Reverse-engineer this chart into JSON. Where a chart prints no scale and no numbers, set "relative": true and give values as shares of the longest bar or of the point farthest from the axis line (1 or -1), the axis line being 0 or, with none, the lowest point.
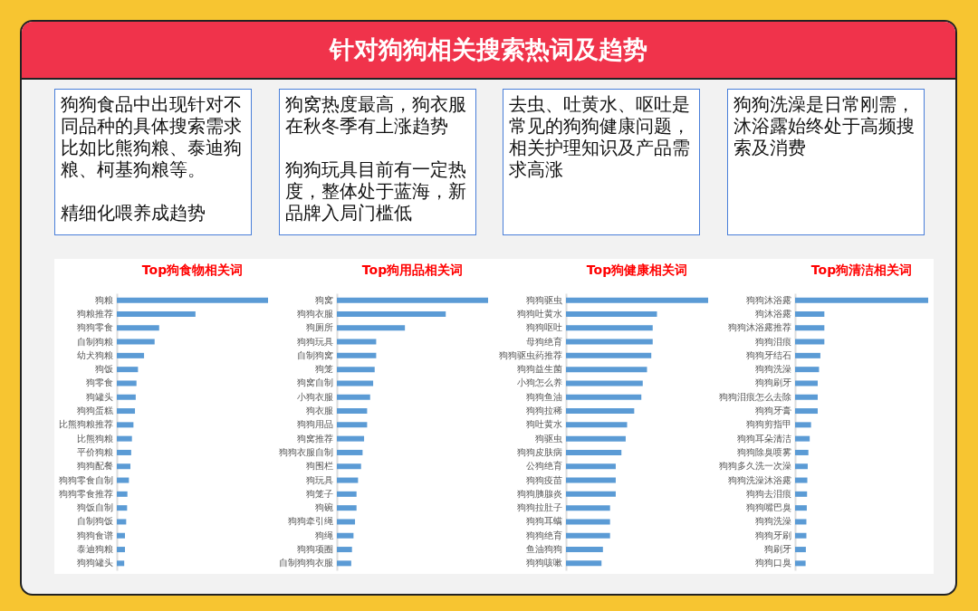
{
  "chart_data": [
    {
      "type": "other",
      "title": "针对狗狗相关搜索热词及趋势"
    },
    {
      "type": "other",
      "annotations": [
        "狗狗食品中出现针对不同品种的具体搜索需求比如比熊狗粮、泰迪狗粮、柯基狗粮等。",
        "精细化喂养成趋势"
      ]
    },
    {
      "type": "other",
      "annotations": [
        "狗窝热度最高，狗衣服在秋冬季有上涨趋势",
        "狗狗玩具目前有一定热度，整体处于蓝海，新品牌入局门槛低"
      ]
    },
    {
      "type": "other",
      "annotations": [
        "去虫、吐黄水、呕吐是常见的狗狗健康问题，相关护理知识及产品需求高涨"
      ]
    },
    {
      "type": "other",
      "annotations": [
        "狗狗洗澡是日常刚需，沐浴露始终处于高频搜索及消费"
      ]
    },
    {
      "type": "bar",
      "orientation": "horizontal",
      "relative": true,
      "title": "Top狗食物相关词",
      "color": "#5b9bd5",
      "categories": [
        "狗粮",
        "狗粮推荐",
        "狗狗零食",
        "自制狗粮",
        "幼犬狗粮",
        "狗饭",
        "狗零食",
        "狗罐头",
        "狗狗蛋糕",
        "比熊狗粮推荐",
        "比熊狗粮",
        "平价狗粮",
        "狗狗配餐",
        "狗狗零食自制",
        "狗狗零食推荐",
        "狗饭自制",
        "自制狗饭",
        "狗狗食谱",
        "泰迪狗粮",
        "狗狗罐头"
      ],
      "values": [
        1,
        0.52,
        0.28,
        0.25,
        0.18,
        0.14,
        0.13,
        0.125,
        0.12,
        0.11,
        0.1,
        0.095,
        0.09,
        0.08,
        0.07,
        0.068,
        0.062,
        0.054,
        0.054,
        0.049
      ]
    },
    {
      "type": "bar",
      "orientation": "horizontal",
      "relative": true,
      "title": "Top狗用品相关词",
      "color": "#5b9bd5",
      "categories": [
        "狗窝",
        "狗狗衣服",
        "狗厕所",
        "狗狗玩具",
        "自制狗窝",
        "狗笼",
        "狗窝自制",
        "小狗衣服",
        "狗衣服",
        "狗狗用品",
        "狗窝推荐",
        "狗狗衣服自制",
        "狗围栏",
        "狗玩具",
        "狗笼子",
        "狗碗",
        "狗狗牵引绳",
        "狗绳",
        "狗狗项圈",
        "自制狗狗衣服"
      ],
      "values": [
        1,
        0.72,
        0.45,
        0.26,
        0.26,
        0.25,
        0.24,
        0.22,
        0.2,
        0.2,
        0.18,
        0.17,
        0.16,
        0.14,
        0.13,
        0.13,
        0.12,
        0.11,
        0.1,
        0.095
      ]
    },
    {
      "type": "bar",
      "orientation": "horizontal",
      "relative": true,
      "title": "Top狗健康相关词",
      "color": "#5b9bd5",
      "categories": [
        "狗狗驱虫",
        "狗狗吐黄水",
        "狗狗呕吐",
        "母狗绝育",
        "狗狗驱虫药推荐",
        "狗狗益生菌",
        "小狗怎么养",
        "狗狗鱼油",
        "狗狗拉稀",
        "狗吐黄水",
        "狗驱虫",
        "狗狗皮肤病",
        "公狗绝育",
        "狗狗疫苗",
        "狗狗胰腺炎",
        "狗狗拉肚子",
        "狗狗耳螨",
        "狗狗绝育",
        "鱼油狗狗",
        "狗狗咳嗽"
      ],
      "values": [
        1,
        0.64,
        0.61,
        0.61,
        0.6,
        0.57,
        0.54,
        0.53,
        0.48,
        0.43,
        0.42,
        0.39,
        0.35,
        0.35,
        0.35,
        0.31,
        0.31,
        0.31,
        0.26,
        0.25
      ]
    },
    {
      "type": "bar",
      "orientation": "horizontal",
      "relative": true,
      "title": "Top狗清洁相关词",
      "color": "#5b9bd5",
      "categories": [
        "狗狗沐浴露",
        "狗沐浴露",
        "狗狗沐浴露推荐",
        "狗狗泪痕",
        "狗狗牙结石",
        "狗狗洗澡",
        "狗狗刷牙",
        "狗狗泪痕怎么去除",
        "狗狗牙膏",
        "狗狗剪指甲",
        "狗狗耳朵清洁",
        "狗狗除臭喷雾",
        "狗狗多久洗一次澡",
        "狗狗洗澡沐浴露",
        "狗狗去泪痕",
        "狗狗嘴巴臭",
        "狗狗洗澡",
        "狗狗牙刷",
        "狗刷牙",
        "狗狗口臭"
      ],
      "values": [
        1,
        0.22,
        0.22,
        0.22,
        0.19,
        0.18,
        0.17,
        0.17,
        0.17,
        0.12,
        0.11,
        0.1,
        0.095,
        0.092,
        0.09,
        0.088,
        0.085,
        0.085,
        0.081,
        0.079
      ]
    }
  ]
}
